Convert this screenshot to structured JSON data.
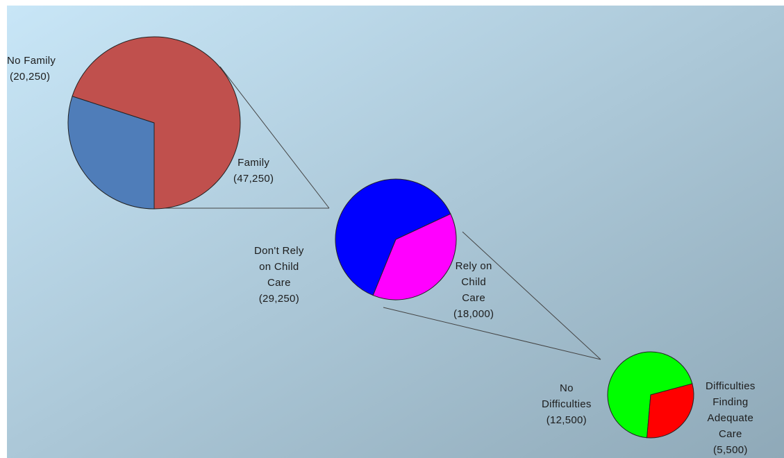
{
  "chart_data": {
    "type": "pie",
    "title": "",
    "background": {
      "gradient_from": "#c8e6f7",
      "gradient_to": "#8fa9b8"
    },
    "connector_color": "#444444",
    "charts": [
      {
        "slices": [
          {
            "label": "No Family",
            "value": 20250,
            "value_text": "(20,250)",
            "color": "#4f7db9"
          },
          {
            "label": "Family",
            "value": 47250,
            "value_text": "(47,250)",
            "color": "#c0504d"
          }
        ]
      },
      {
        "slices": [
          {
            "label": "Don't Rely on Child Care",
            "value": 29250,
            "value_text": "(29,250)",
            "color": "#0000ff"
          },
          {
            "label": "Rely on Child Care",
            "value": 18000,
            "value_text": "(18,000)",
            "color": "#ff00ff"
          }
        ]
      },
      {
        "slices": [
          {
            "label": "No Difficulties",
            "value": 12500,
            "value_text": "(12,500)",
            "color": "#00ff00"
          },
          {
            "label": "Difficulties Finding Adequate Care",
            "value": 5500,
            "value_text": "(5,500)",
            "color": "#ff0000"
          }
        ]
      }
    ]
  },
  "labels": {
    "no_family": {
      "line1": "No Family",
      "value": "(20,250)"
    },
    "family": {
      "line1": "Family",
      "value": "(47,250)"
    },
    "dont_rely": {
      "line1": "Don't Rely",
      "line2": "on Child",
      "line3": "Care",
      "value": "(29,250)"
    },
    "rely": {
      "line1": "Rely on",
      "line2": "Child",
      "line3": "Care",
      "value": "(18,000)"
    },
    "no_difficulties": {
      "line1": "No",
      "line2": "Difficulties",
      "value": "(12,500)"
    },
    "difficulties": {
      "line1": "Difficulties",
      "line2": "Finding",
      "line3": "Adequate",
      "line4": "Care",
      "value": "(5,500)"
    }
  }
}
